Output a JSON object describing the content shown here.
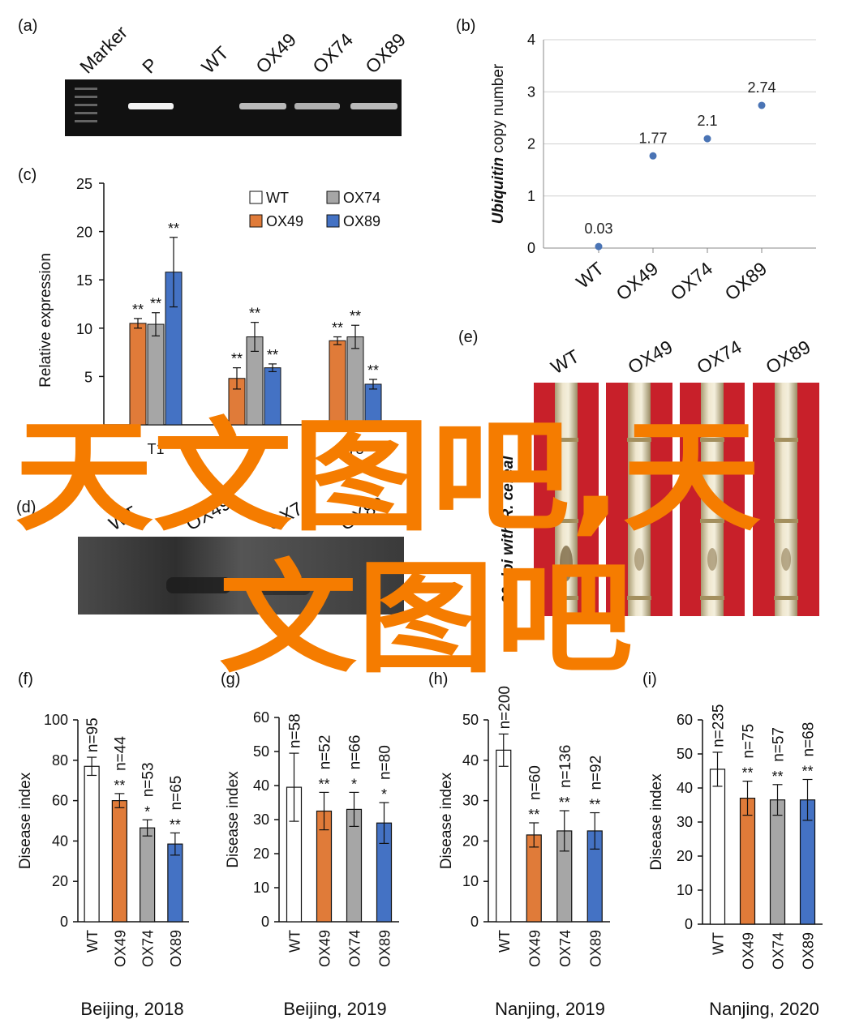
{
  "colors": {
    "WT": "#ffffff",
    "OX49": "#e07b39",
    "OX74": "#a6a6a6",
    "OX89": "#4472c4",
    "stroke": "#111111",
    "dot": "#4a74b5",
    "watermark": "#f57c00"
  },
  "watermark": {
    "line1": "天文图吧,天",
    "line2": "文图吧"
  },
  "panel_a": {
    "label": "(a)",
    "lanes": [
      "Marker",
      "P",
      "WT",
      "OX49",
      "OX74",
      "OX89"
    ]
  },
  "panel_d": {
    "label": "(d)",
    "lanes": [
      "WT",
      "OX49",
      "OX74",
      "OX89"
    ]
  },
  "panel_e": {
    "label": "(e)",
    "lanes": [
      "WT",
      "OX49",
      "OX74",
      "OX89"
    ],
    "side_text": "60 dpi with R. cereal"
  },
  "chart_data": [
    {
      "id": "b",
      "label": "(b)",
      "type": "scatter",
      "ylabel_italic": "Ubiquitin",
      "ylabel_rest": " copy number",
      "categories": [
        "WT",
        "OX49",
        "OX74",
        "OX89"
      ],
      "values": [
        0.03,
        1.77,
        2.1,
        2.74
      ],
      "data_labels": [
        "0.03",
        "1.77",
        "2.1",
        "2.74"
      ],
      "ylim": [
        0,
        4
      ],
      "yticks": [
        "0",
        "1",
        "2",
        "3",
        "4"
      ],
      "grid": true
    },
    {
      "id": "c",
      "label": "(c)",
      "type": "bar",
      "ylabel": "Relative expression",
      "categories": [
        "T1",
        "T2",
        "T3"
      ],
      "category_labels": [
        "T1",
        "2",
        "T3"
      ],
      "ylim": [
        0,
        25
      ],
      "yticks": [
        "5",
        "10",
        "15",
        "20",
        "25"
      ],
      "legend": [
        "WT",
        "OX74",
        "OX49",
        "OX89"
      ],
      "legend_placement": "top-right",
      "series": [
        {
          "name": "WT",
          "values": [
            0,
            0,
            0
          ],
          "errors": [
            0,
            0,
            0
          ],
          "sig": [
            "",
            "",
            ""
          ]
        },
        {
          "name": "OX49",
          "values": [
            10.5,
            4.8,
            8.7
          ],
          "errors": [
            0.5,
            1.1,
            0.4
          ],
          "sig": [
            "**",
            "**",
            "**"
          ]
        },
        {
          "name": "OX74",
          "values": [
            10.4,
            9.1,
            9.1
          ],
          "errors": [
            1.2,
            1.5,
            1.2
          ],
          "sig": [
            "**",
            "**",
            "**"
          ]
        },
        {
          "name": "OX89",
          "values": [
            15.8,
            5.9,
            4.2
          ],
          "errors": [
            3.6,
            0.4,
            0.5
          ],
          "sig": [
            "**",
            "**",
            "**"
          ]
        }
      ]
    },
    {
      "id": "f",
      "label": "(f)",
      "type": "bar",
      "ylabel": "Disease index",
      "caption": "Beijing, 2018",
      "categories": [
        "WT",
        "OX49",
        "OX74",
        "OX89"
      ],
      "values": [
        77,
        60,
        46.5,
        38.5
      ],
      "errors": [
        4.5,
        3.5,
        4,
        5.5
      ],
      "n_labels": [
        "n=95",
        "n=44",
        "n=53",
        "n=65"
      ],
      "sig": [
        "",
        "**",
        "*",
        "**"
      ],
      "ylim": [
        0,
        100
      ],
      "yticks": [
        "0",
        "20",
        "40",
        "60",
        "80",
        "100"
      ]
    },
    {
      "id": "g",
      "label": "(g)",
      "type": "bar",
      "ylabel": "Disease index",
      "caption": "Beijing, 2019",
      "categories": [
        "WT",
        "OX49",
        "OX74",
        "OX89"
      ],
      "values": [
        39.5,
        32.5,
        33,
        29
      ],
      "errors": [
        10,
        5.5,
        5,
        6
      ],
      "n_labels": [
        "n=58",
        "n=52",
        "n=66",
        "n=80"
      ],
      "sig": [
        "",
        "**",
        "*",
        "*"
      ],
      "ylim": [
        0,
        60
      ],
      "yticks": [
        "0",
        "10",
        "20",
        "30",
        "40",
        "50",
        "60"
      ]
    },
    {
      "id": "h",
      "label": "(h)",
      "type": "bar",
      "ylabel": "Disease index",
      "caption": "Nanjing, 2019",
      "categories": [
        "WT",
        "OX49",
        "OX74",
        "OX89"
      ],
      "values": [
        42.5,
        21.5,
        22.5,
        22.5
      ],
      "errors": [
        4,
        3,
        5,
        4.5
      ],
      "n_labels": [
        "n=200",
        "n=60",
        "n=136",
        "n=92"
      ],
      "sig": [
        "",
        "**",
        "**",
        "**"
      ],
      "ylim": [
        0,
        50
      ],
      "yticks": [
        "0",
        "10",
        "20",
        "30",
        "40",
        "50"
      ]
    },
    {
      "id": "i",
      "label": "(i)",
      "type": "bar",
      "ylabel": "Disease index",
      "caption": "Nanjing, 2020",
      "categories": [
        "WT",
        "OX49",
        "OX74",
        "OX89"
      ],
      "values": [
        45.5,
        37,
        36.5,
        36.5
      ],
      "errors": [
        5,
        5,
        4.5,
        6
      ],
      "n_labels": [
        "n=235",
        "n=75",
        "n=57",
        "n=68"
      ],
      "sig": [
        "",
        "**",
        "**",
        "**"
      ],
      "ylim": [
        0,
        60
      ],
      "yticks": [
        "0",
        "10",
        "20",
        "30",
        "40",
        "50",
        "60"
      ]
    }
  ]
}
